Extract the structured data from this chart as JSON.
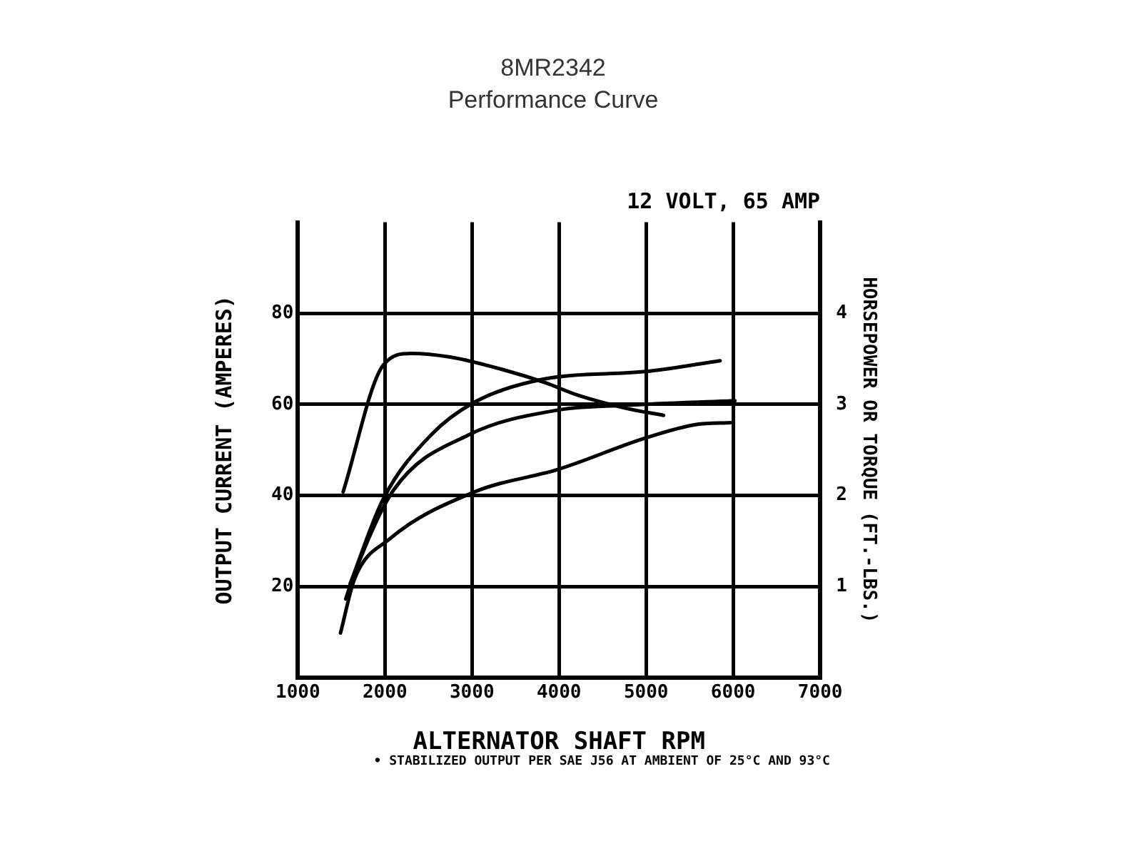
{
  "chart_data": {
    "type": "line",
    "title": "8MR2342",
    "subtitle": "Performance Curve",
    "xlabel": "ALTERNATOR SHAFT RPM",
    "ylabel": "OUTPUT CURRENT (AMPERES)",
    "y2label": "HORSEPOWER OR TORQUE (FT.-LBS.)",
    "annotations": [
      "12 VOLT, 65 AMP",
      "• STABILIZED OUTPUT PER SAE J56 AT AMBIENT OF 25°C AND 93°C"
    ],
    "xlim": [
      1000,
      7000
    ],
    "xticks": [
      1000,
      2000,
      3000,
      4000,
      5000,
      6000,
      7000
    ],
    "ylim": [
      0,
      100
    ],
    "yticks": [
      20,
      40,
      60,
      80
    ],
    "y2lim": [
      0,
      5
    ],
    "y2ticks": [
      1,
      2,
      3,
      4
    ],
    "grid": true,
    "legend": false,
    "marker": "none",
    "line_style": "solid",
    "series": [
      {
        "color": "#000000",
        "axis": "y2",
        "x": [
          1520,
          1980,
          2300,
          2750,
          3400,
          3840,
          4220,
          4760,
          5200
        ],
        "values": [
          2.04,
          3.43,
          3.56,
          3.52,
          3.37,
          3.24,
          3.1,
          2.96,
          2.88
        ]
      },
      {
        "color": "#000000",
        "x": [
          1600,
          1980,
          2530,
          3030,
          3780,
          5040,
          5850
        ],
        "values": [
          20.6,
          39.2,
          53.3,
          60.5,
          65.4,
          67.3,
          69.6
        ]
      },
      {
        "color": "#000000",
        "x": [
          1550,
          1650,
          2100,
          2960,
          4000,
          4760,
          6020
        ],
        "values": [
          17.3,
          22.9,
          41.2,
          53.3,
          58.8,
          59.8,
          60.8
        ]
      },
      {
        "color": "#000000",
        "axis": "y2",
        "x": [
          1490,
          1650,
          2050,
          3030,
          4000,
          4990,
          5580,
          5970
        ],
        "values": [
          0.49,
          1.08,
          1.52,
          2.04,
          2.29,
          2.63,
          2.78,
          2.8
        ]
      }
    ]
  }
}
